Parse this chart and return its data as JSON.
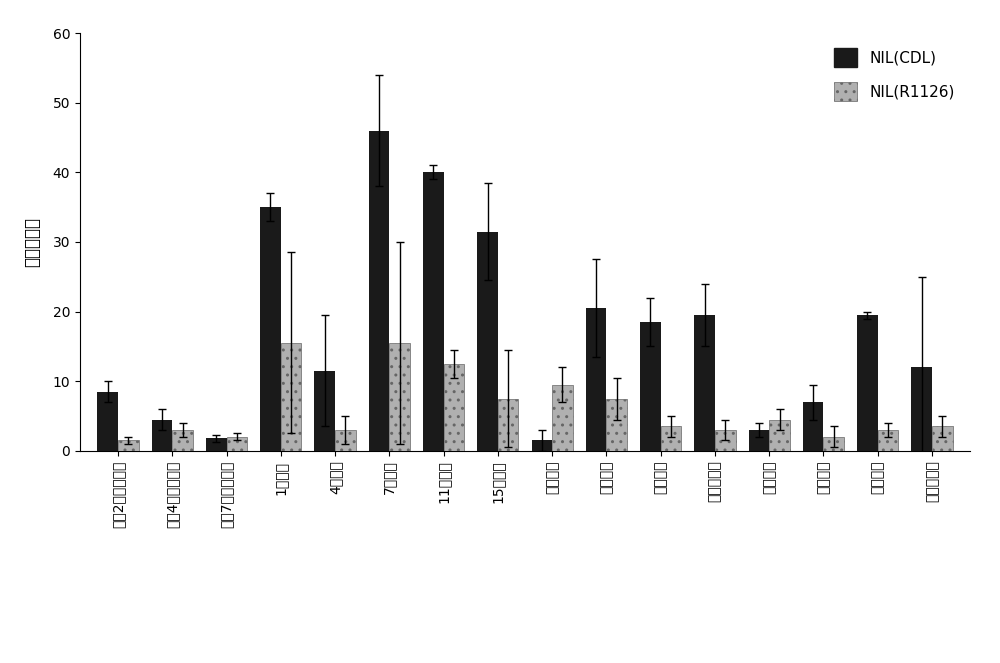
{
  "categories": [
    "小花2毫米时期壳",
    "小花4毫米时期壳",
    "小花7毫米时期壳",
    "1厘米穗",
    "4厘米穗",
    "7厘米穗",
    "11厘米穗",
    "15厘米穗",
    "分虩期根",
    "分虩期茎",
    "分虩期叶",
    "分虩期叶鞘",
    "孕穗期根",
    "孕穗期茎",
    "孕穗期叶",
    "孕穗期叶鞘"
  ],
  "cdl_values": [
    8.5,
    4.5,
    1.8,
    35.0,
    11.5,
    46.0,
    40.0,
    31.5,
    1.5,
    20.5,
    18.5,
    19.5,
    3.0,
    7.0,
    19.5,
    12.0
  ],
  "cdl_errors": [
    1.5,
    1.5,
    0.5,
    2.0,
    8.0,
    8.0,
    1.0,
    7.0,
    1.5,
    7.0,
    3.5,
    4.5,
    1.0,
    2.5,
    0.5,
    13.0
  ],
  "r1126_values": [
    1.5,
    3.0,
    2.0,
    15.5,
    3.0,
    15.5,
    12.5,
    7.5,
    9.5,
    7.5,
    3.5,
    3.0,
    4.5,
    2.0,
    3.0,
    3.5
  ],
  "r1126_errors": [
    0.5,
    1.0,
    0.5,
    13.0,
    2.0,
    14.5,
    2.0,
    7.0,
    2.5,
    3.0,
    1.5,
    1.5,
    1.5,
    1.5,
    1.0,
    1.5
  ],
  "cdl_color": "#1a1a1a",
  "r1126_color": "#b0b0b0",
  "ylabel": "相对表达量",
  "ylim": [
    0,
    60
  ],
  "yticks": [
    0,
    10,
    20,
    30,
    40,
    50,
    60
  ],
  "legend_cdl": "NIL(CDL)",
  "legend_r1126": "NIL(R1126)",
  "bar_width": 0.38,
  "figsize": [
    10.0,
    6.63
  ],
  "dpi": 100
}
